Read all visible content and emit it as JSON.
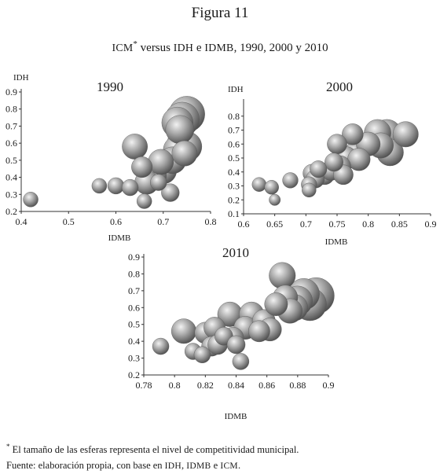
{
  "figure": {
    "title": "Figura 11",
    "subtitle_prefix": "ICM",
    "subtitle_star": "*",
    "subtitle_mid": " versus ",
    "subtitle_idh": "IDH",
    "subtitle_e": " e ",
    "subtitle_idmb": "IDMB",
    "subtitle_end": ", 1990, 2000 y 2010"
  },
  "footnote": {
    "star": "*",
    "note": " El tamaño de las esferas representa el nivel de competitividad municipal.",
    "source_prefix": "Fuente: elaboración propia, con base en ",
    "idh": "IDH",
    "comma": ", ",
    "idmb": "IDMB",
    "e": " e ",
    "icm": "ICM",
    "period": "."
  },
  "colors": {
    "sphere_light": "#f2f2f2",
    "sphere_mid": "#a9a9a9",
    "sphere_dark": "#4a4a4a",
    "axis": "#333333"
  },
  "chart_data": [
    {
      "type": "scatter",
      "title": "1990",
      "xlabel": "IDMB",
      "ylabel": "IDH",
      "xlim": [
        0.4,
        0.8
      ],
      "ylim": [
        0.2,
        0.9
      ],
      "xticks": [
        "0.4",
        "0.5",
        "0.6",
        "0.7",
        "0.8"
      ],
      "yticks": [
        "0.2",
        "0.3",
        "0.4",
        "0.5",
        "0.6",
        "0.7",
        "0.8",
        "0.9"
      ],
      "grid": false,
      "size_meaning": "competitividad municipal (ICM)",
      "points": [
        {
          "x": 0.42,
          "y": 0.27,
          "size": 1
        },
        {
          "x": 0.565,
          "y": 0.35,
          "size": 1
        },
        {
          "x": 0.6,
          "y": 0.35,
          "size": 1.1
        },
        {
          "x": 0.63,
          "y": 0.34,
          "size": 1.1
        },
        {
          "x": 0.66,
          "y": 0.26,
          "size": 1
        },
        {
          "x": 0.69,
          "y": 0.37,
          "size": 1.1
        },
        {
          "x": 0.715,
          "y": 0.31,
          "size": 1.2
        },
        {
          "x": 0.64,
          "y": 0.58,
          "size": 1.7
        },
        {
          "x": 0.655,
          "y": 0.46,
          "size": 1.4
        },
        {
          "x": 0.665,
          "y": 0.37,
          "size": 1.6
        },
        {
          "x": 0.68,
          "y": 0.41,
          "size": 1.7
        },
        {
          "x": 0.7,
          "y": 0.44,
          "size": 1.8
        },
        {
          "x": 0.695,
          "y": 0.49,
          "size": 1.7
        },
        {
          "x": 0.72,
          "y": 0.5,
          "size": 1.8
        },
        {
          "x": 0.73,
          "y": 0.56,
          "size": 1.9
        },
        {
          "x": 0.74,
          "y": 0.6,
          "size": 2
        },
        {
          "x": 0.745,
          "y": 0.54,
          "size": 1.7
        },
        {
          "x": 0.75,
          "y": 0.58,
          "size": 2
        },
        {
          "x": 0.735,
          "y": 0.68,
          "size": 1.9
        },
        {
          "x": 0.74,
          "y": 0.74,
          "size": 2.3
        },
        {
          "x": 0.75,
          "y": 0.77,
          "size": 2.4
        },
        {
          "x": 0.73,
          "y": 0.72,
          "size": 2.1
        }
      ]
    },
    {
      "type": "scatter",
      "title": "2000",
      "xlabel": "IDMB",
      "ylabel": "IDH",
      "xlim": [
        0.6,
        0.9
      ],
      "ylim": [
        0.1,
        0.9
      ],
      "xticks": [
        "0.6",
        "0.65",
        "0.7",
        "0.75",
        "0.8",
        "0.85",
        "0.9"
      ],
      "yticks": [
        "0.1",
        "0.2",
        "0.3",
        "0.4",
        "0.5",
        "0.6",
        "0.7",
        "0.8"
      ],
      "grid": false,
      "size_meaning": "competitividad municipal (ICM)",
      "points": [
        {
          "x": 0.625,
          "y": 0.31,
          "size": 1
        },
        {
          "x": 0.645,
          "y": 0.29,
          "size": 1
        },
        {
          "x": 0.65,
          "y": 0.2,
          "size": 0.8
        },
        {
          "x": 0.675,
          "y": 0.34,
          "size": 1.1
        },
        {
          "x": 0.705,
          "y": 0.27,
          "size": 1
        },
        {
          "x": 0.705,
          "y": 0.31,
          "size": 1.1
        },
        {
          "x": 0.71,
          "y": 0.39,
          "size": 1.3
        },
        {
          "x": 0.715,
          "y": 0.35,
          "size": 1.3
        },
        {
          "x": 0.72,
          "y": 0.42,
          "size": 1.2
        },
        {
          "x": 0.73,
          "y": 0.38,
          "size": 1.4
        },
        {
          "x": 0.74,
          "y": 0.41,
          "size": 1.4
        },
        {
          "x": 0.745,
          "y": 0.47,
          "size": 1.3
        },
        {
          "x": 0.75,
          "y": 0.6,
          "size": 1.4
        },
        {
          "x": 0.755,
          "y": 0.44,
          "size": 1.5
        },
        {
          "x": 0.76,
          "y": 0.38,
          "size": 1.4
        },
        {
          "x": 0.765,
          "y": 0.5,
          "size": 1.6
        },
        {
          "x": 0.775,
          "y": 0.67,
          "size": 1.5
        },
        {
          "x": 0.78,
          "y": 0.53,
          "size": 1.7
        },
        {
          "x": 0.785,
          "y": 0.49,
          "size": 1.6
        },
        {
          "x": 0.8,
          "y": 0.6,
          "size": 1.7
        },
        {
          "x": 0.815,
          "y": 0.68,
          "size": 1.9
        },
        {
          "x": 0.83,
          "y": 0.67,
          "size": 2.1
        },
        {
          "x": 0.835,
          "y": 0.54,
          "size": 1.9
        },
        {
          "x": 0.86,
          "y": 0.67,
          "size": 1.8
        },
        {
          "x": 0.82,
          "y": 0.59,
          "size": 1.8
        }
      ]
    },
    {
      "type": "scatter",
      "title": "2010",
      "xlabel": "IDMB",
      "ylabel": "",
      "xlim": [
        0.78,
        0.9
      ],
      "ylim": [
        0.2,
        0.9
      ],
      "xticks": [
        "0.78",
        "0.8",
        "0.82",
        "0.84",
        "0.86",
        "0.88",
        "0.9"
      ],
      "yticks": [
        "0.2",
        "0.3",
        "0.4",
        "0.5",
        "0.6",
        "0.7",
        "0.8",
        "0.9"
      ],
      "grid": false,
      "size_meaning": "competitividad municipal (ICM)",
      "points": [
        {
          "x": 0.791,
          "y": 0.37,
          "size": 1
        },
        {
          "x": 0.806,
          "y": 0.46,
          "size": 1.5
        },
        {
          "x": 0.812,
          "y": 0.34,
          "size": 1
        },
        {
          "x": 0.818,
          "y": 0.32,
          "size": 1
        },
        {
          "x": 0.82,
          "y": 0.45,
          "size": 1.3
        },
        {
          "x": 0.824,
          "y": 0.37,
          "size": 1.2
        },
        {
          "x": 0.826,
          "y": 0.48,
          "size": 1.3
        },
        {
          "x": 0.828,
          "y": 0.38,
          "size": 1.2
        },
        {
          "x": 0.832,
          "y": 0.43,
          "size": 1.1
        },
        {
          "x": 0.836,
          "y": 0.56,
          "size": 1.5
        },
        {
          "x": 0.838,
          "y": 0.42,
          "size": 1.3
        },
        {
          "x": 0.84,
          "y": 0.38,
          "size": 1.1
        },
        {
          "x": 0.843,
          "y": 0.28,
          "size": 1
        },
        {
          "x": 0.846,
          "y": 0.48,
          "size": 1.4
        },
        {
          "x": 0.85,
          "y": 0.56,
          "size": 1.5
        },
        {
          "x": 0.852,
          "y": 0.52,
          "size": 1.7
        },
        {
          "x": 0.855,
          "y": 0.46,
          "size": 1.3
        },
        {
          "x": 0.858,
          "y": 0.52,
          "size": 1.4
        },
        {
          "x": 0.862,
          "y": 0.47,
          "size": 1.4
        },
        {
          "x": 0.866,
          "y": 0.62,
          "size": 1.4
        },
        {
          "x": 0.87,
          "y": 0.79,
          "size": 1.6
        },
        {
          "x": 0.872,
          "y": 0.66,
          "size": 1.5
        },
        {
          "x": 0.875,
          "y": 0.58,
          "size": 1.5
        },
        {
          "x": 0.88,
          "y": 0.64,
          "size": 1.8
        },
        {
          "x": 0.884,
          "y": 0.68,
          "size": 1.9
        },
        {
          "x": 0.888,
          "y": 0.62,
          "size": 2
        },
        {
          "x": 0.892,
          "y": 0.67,
          "size": 2.2
        },
        {
          "x": 0.878,
          "y": 0.6,
          "size": 1.6
        }
      ]
    }
  ]
}
